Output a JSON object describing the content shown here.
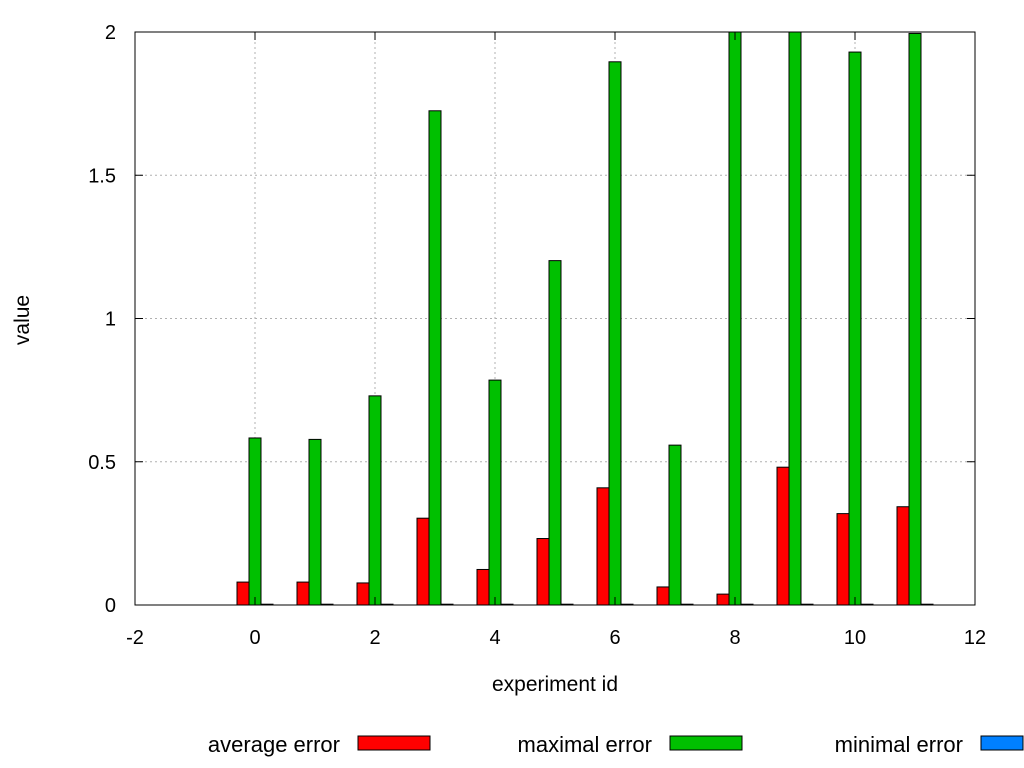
{
  "chart_data": {
    "type": "bar",
    "xlabel": "experiment id",
    "ylabel": "value",
    "xlim": [
      -2,
      12
    ],
    "ylim": [
      0,
      2
    ],
    "x_ticks": [
      -2,
      0,
      2,
      4,
      6,
      8,
      10,
      12
    ],
    "y_ticks": [
      0,
      0.5,
      1,
      1.5,
      2
    ],
    "x_tick_labels": [
      "-2",
      "0",
      "2",
      "4",
      "6",
      "8",
      "10",
      "12"
    ],
    "y_tick_labels": [
      "0",
      "0.5",
      "1",
      "1.5",
      "2"
    ],
    "grid": true,
    "legend_position": "bottom",
    "x": [
      0,
      1,
      2,
      3,
      4,
      5,
      6,
      7,
      8,
      9,
      10,
      11
    ],
    "series": [
      {
        "name": "average error",
        "color": "#ff0000",
        "values": [
          0.08,
          0.08,
          0.077,
          0.303,
          0.124,
          0.232,
          0.409,
          0.063,
          0.038,
          0.481,
          0.319,
          0.343
        ]
      },
      {
        "name": "maximal error",
        "color": "#00c000",
        "values": [
          0.583,
          0.578,
          0.73,
          1.725,
          0.785,
          1.202,
          1.896,
          0.558,
          2.0,
          2.0,
          1.93,
          1.995
        ]
      },
      {
        "name": "minimal error",
        "color": "#0080ff",
        "values": [
          0.002,
          0.002,
          0.002,
          0.002,
          0.002,
          0.002,
          0.002,
          0.002,
          0.002,
          0.002,
          0.002,
          0.002
        ]
      }
    ]
  }
}
